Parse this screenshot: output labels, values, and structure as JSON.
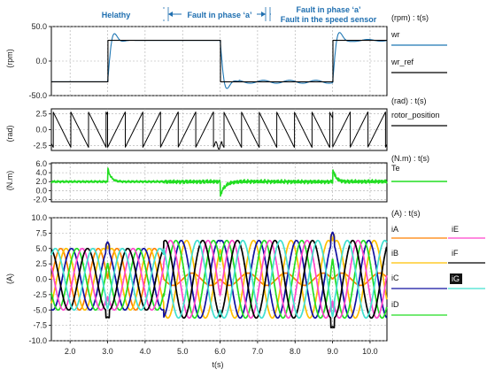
{
  "chart_data": [
    {
      "type": "line",
      "id": "speed",
      "ylabel": "(rpm)",
      "legend_title": "(rpm) : t(s)",
      "ylim": [
        -50,
        50
      ],
      "yticks": [
        50.0,
        0.0,
        -50.0
      ],
      "ytick_labels": [
        "50.0",
        "0.0",
        "-50.0"
      ],
      "series": [
        {
          "name": "wr",
          "color": "#1f77b4"
        },
        {
          "name": "wr_ref",
          "color": "#000000"
        }
      ]
    },
    {
      "type": "line",
      "id": "position",
      "ylabel": "(rad)",
      "legend_title": "(rad) : t(s)",
      "ylim": [
        -3.3,
        3.3
      ],
      "yticks": [
        2.5,
        0.0,
        -2.5
      ],
      "ytick_labels": [
        "2.5",
        "0.0",
        "-2.5"
      ],
      "series": [
        {
          "name": "rotor_position",
          "color": "#000000"
        }
      ]
    },
    {
      "type": "line",
      "id": "torque",
      "ylabel": "(N.m)",
      "legend_title": "(N.m) : t(s)",
      "ylim": [
        -2.5,
        6.2
      ],
      "yticks": [
        6.0,
        4.0,
        2.0,
        0.0,
        -2.0
      ],
      "ytick_labels": [
        "6.0",
        "4.0",
        "2.0",
        "0.0",
        "-2.0"
      ],
      "series": [
        {
          "name": "Te",
          "color": "#22dd22"
        }
      ]
    },
    {
      "type": "line",
      "id": "currents",
      "ylabel": "(A)",
      "legend_title": "(A) : t(s)",
      "ylim": [
        -10,
        10
      ],
      "yticks": [
        10.0,
        7.5,
        5.0,
        2.5,
        0.0,
        -2.5,
        -5.0,
        -7.5,
        -10.0
      ],
      "ytick_labels": [
        "10.0",
        "7.5",
        "5.0",
        "2.5",
        "0.0",
        "-2.5",
        "-5.0",
        "-7.5",
        "-10.0"
      ],
      "series": [
        {
          "name": "iA",
          "color": "#ff8000"
        },
        {
          "name": "iB",
          "color": "#ffc000"
        },
        {
          "name": "iC",
          "color": "#1010a0"
        },
        {
          "name": "iD",
          "color": "#22dd22"
        },
        {
          "name": "iE",
          "color": "#ff44cc"
        },
        {
          "name": "iF",
          "color": "#000000"
        },
        {
          "name": "iG",
          "color": "#40e0d0"
        }
      ]
    }
  ],
  "time_axis": {
    "xlabel": "t(s)",
    "xlim": [
      1.5,
      10.45
    ],
    "xticks": [
      2.0,
      3.0,
      4.0,
      5.0,
      6.0,
      7.0,
      8.0,
      9.0,
      10.0
    ],
    "xtick_labels": [
      "2.0",
      "3.0",
      "4.0",
      "5.0",
      "6.0",
      "7.0",
      "8.0",
      "9.0",
      "10.0"
    ]
  },
  "phases": [
    {
      "label": "Helathy",
      "label2": "",
      "start": 1.5,
      "end": 4.5
    },
    {
      "label": "Fault in phase ‘a’",
      "label2": "",
      "start": 4.5,
      "end": 6.5
    },
    {
      "label": "Fault in phase ‘a’",
      "label2": "Fault in the speed sensor",
      "start": 6.5,
      "end": 10.45
    }
  ],
  "colors": {
    "phase_arrow": "#1f6fb0",
    "grid": "#999999",
    "axis": "#000000"
  }
}
